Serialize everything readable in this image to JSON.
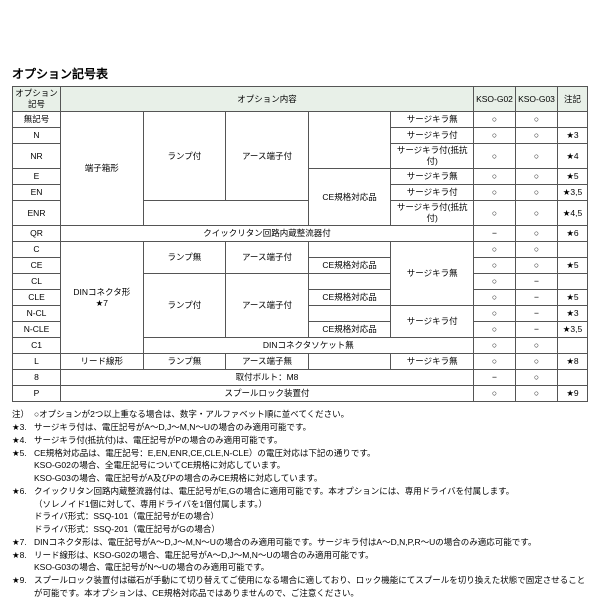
{
  "title": "オプション記号表",
  "headers": {
    "code": "オプション記号",
    "content": "オプション内容",
    "g02": "KSO-G02",
    "g03": "KSO-G03",
    "note": "注記"
  },
  "codes": {
    "none": "無記号",
    "N": "N",
    "NR": "NR",
    "E": "E",
    "EN": "EN",
    "ENR": "ENR",
    "QR": "QR",
    "C": "C",
    "CE": "CE",
    "CL": "CL",
    "CLE": "CLE",
    "NCL": "N-CL",
    "NCLE": "N-CLE",
    "C1": "C1",
    "L": "L",
    "8": "8",
    "P": "P"
  },
  "content": {
    "terminal_box": "端子箱形",
    "din": "DINコネクタ形",
    "din_star": "★7",
    "lead": "リード線形",
    "lamp_on": "ランプ付",
    "lamp_off": "ランプ無",
    "earth_on": "アース端子付",
    "earth_off": "アース端子無",
    "ce": "CE規格対応品",
    "quick": "クイックリタン回路内蔵整流器付",
    "din_socket": "DINコネクタソケット無",
    "m8": "取付ボルト：M8",
    "spool": "スプールロック装置付",
    "surge_none": "サージキラ無",
    "surge_yes": "サージキラ付",
    "surge_res": "サージキラ付(抵抗付)"
  },
  "marks": {
    "circle": "○",
    "dash": "−"
  },
  "stars": {
    "s3": "★3",
    "s4": "★4",
    "s5": "★5",
    "s35": "★3,5",
    "s45": "★4,5",
    "s6": "★6",
    "s8": "★8",
    "s9": "★9"
  },
  "foot": {
    "h": "注）",
    "l0": "○オプションが2つ以上重なる場合は、数字・アルファベット順に並べてください。",
    "l3": "★3.",
    "t3": "サージキラ付は、電圧記号がA～D,J～M,N～Uの場合のみ適用可能です。",
    "l4": "★4.",
    "t4": "サージキラ付(抵抗付)は、電圧記号がPの場合のみ適用可能です。",
    "l5": "★5.",
    "t5": "CE規格対応品は、電圧記号：E,EN,ENR,CE,CLE,N-CLE）の電圧対応は下記の通りです。",
    "t5a": "KSO-G02の場合、全電圧記号についてCE規格に対応しています。",
    "t5b": "KSO-G03の場合、電圧記号がA及びPの場合のみCE規格に対応しています。",
    "l6": "★6.",
    "t6": "クイックリタン回路内蔵整流器付は、電圧記号がE,Gの場合に適用可能です。本オプションには、専用ドライバを付属します。",
    "t6a": "（ソレノイド1個に対して、専用ドライバを1個付属します。）",
    "t6b": "ドライバ形式：SSQ-101（電圧記号がEの場合）",
    "t6c": "ドライバ形式：SSQ-201（電圧記号がGの場合）",
    "l7": "★7.",
    "t7": "DINコネクタ形は、電圧記号がA～D,J～M,N～Uの場合のみ適用可能です。サージキラ付はA～D,N,P,R～Uの場合のみ適応可能です。",
    "l8": "★8.",
    "t8": "リード線形は、KSO-G02の場合、電圧記号がA～D,J～M,N～Uの場合のみ適用可能です。",
    "t8a": "KSO-G03の場合、電圧記号がN～Uの場合のみ適用可能です。",
    "l9": "★9.",
    "t9": "スプールロック装置付は磁石が手動にて切り替えてご使用になる場合に適しており、ロック機能にてスプールを切り換えた状態で固定させることが可能です。本オプションは、CE規格対応品ではありませんので、ご注意ください。"
  }
}
